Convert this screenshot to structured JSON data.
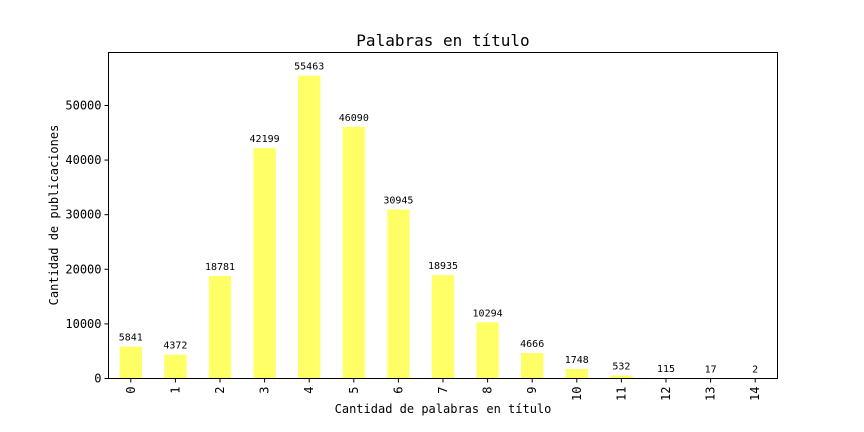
{
  "chart_data": {
    "type": "bar",
    "title": "Palabras en título",
    "xlabel": "Cantidad de palabras en título",
    "ylabel": "Cantidad de publicaciones",
    "categories": [
      "0",
      "1",
      "2",
      "3",
      "4",
      "5",
      "6",
      "7",
      "8",
      "9",
      "10",
      "11",
      "12",
      "13",
      "14"
    ],
    "values": [
      5841,
      4372,
      18781,
      42199,
      55463,
      46090,
      30945,
      18935,
      10294,
      4666,
      1748,
      532,
      115,
      17,
      2
    ],
    "data_labels": [
      "5841",
      "4372",
      "18781",
      "42199",
      "55463",
      "46090",
      "30945",
      "18935",
      "10294",
      "4666",
      "1748",
      "532",
      "115",
      "17",
      "2"
    ],
    "ylim": [
      0,
      59700
    ],
    "yticks": [
      0,
      10000,
      20000,
      30000,
      40000,
      50000
    ],
    "ytick_labels": [
      "0",
      "10000",
      "20000",
      "30000",
      "40000",
      "50000"
    ],
    "bar_color": "#ffff66",
    "grid": false,
    "legend": "none"
  }
}
